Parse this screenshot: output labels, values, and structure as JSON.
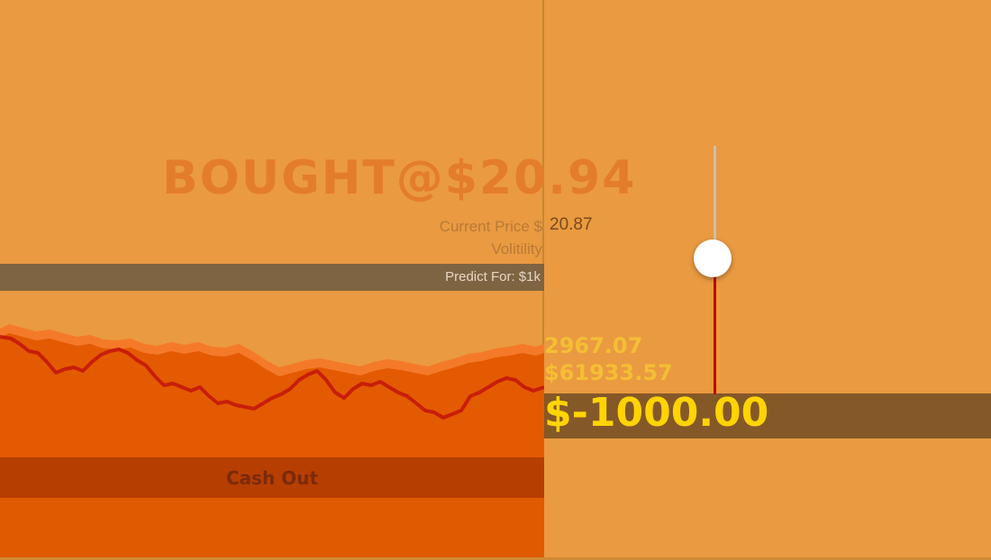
{
  "header": {
    "bought_text": "BOUGHT@$20.94"
  },
  "stats": {
    "current_price_label": "Current Price $",
    "current_price_value": "20.87",
    "volatility_label": "Volitility"
  },
  "predict": {
    "label": "Predict For: $1k"
  },
  "results": {
    "value_1": "2967.07",
    "value_2": "$61933.57",
    "money": "$-1000.00"
  },
  "actions": {
    "cash_out_label": "Cash Out"
  },
  "slider": {
    "level": 0.56
  },
  "colors": {
    "background": "#EA9A40",
    "price_line": "#C81E0A",
    "band_outer": "#F47A2A",
    "band_fill": "#E45A00",
    "money_text": "#FFD400",
    "slider_active": "#C00000"
  }
}
